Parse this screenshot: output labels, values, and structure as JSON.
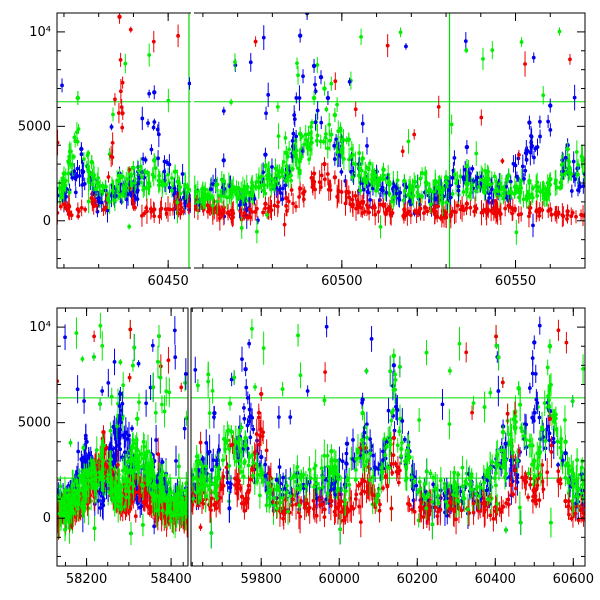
{
  "chart_data": [
    {
      "type": "scatter",
      "title": "",
      "xlabel": "",
      "ylabel": "",
      "xlim": [
        60418,
        60570
      ],
      "ylim": [
        -2500,
        11000
      ],
      "x_ticks": [
        60450,
        60500,
        60550
      ],
      "x_tick_labels": [
        "60450",
        "60500",
        "60550"
      ],
      "y_ticks": [
        0,
        5000,
        10000
      ],
      "y_tick_labels": [
        "0",
        "5000",
        "10⁴"
      ],
      "hlines": [
        {
          "y": 6300,
          "color": "#00dd00"
        }
      ],
      "vlines": [
        {
          "x": 60456,
          "color": "#00dd00"
        },
        {
          "x": 60531,
          "color": "#00dd00"
        }
      ],
      "panel_breaks": [
        60457
      ],
      "series_colors": [
        "#0000ee",
        "#00ee00",
        "#ee0000"
      ],
      "series": [
        {
          "color": "#0000ee",
          "sampling": "Baseline ~1200 with strong scatter to 8000+; clumps around 60485-60500 reaching 10000+.",
          "x": [
            60420,
            60425,
            60430,
            60436,
            60440,
            60446,
            60452,
            60460,
            60466,
            60472,
            60478,
            60484,
            60488,
            60490,
            60492,
            60494,
            60496,
            60500,
            60505,
            60510,
            60518,
            60524,
            60530,
            60536,
            60542,
            60548,
            60554,
            60560,
            60565,
            60568
          ],
          "y": [
            1400,
            3800,
            1200,
            2500,
            1800,
            6800,
            1500,
            1200,
            3200,
            900,
            3500,
            2200,
            9800,
            11000,
            8200,
            7600,
            6500,
            4200,
            3000,
            2600,
            1900,
            1500,
            2100,
            3900,
            1800,
            2400,
            5200,
            6100,
            4000,
            2800
          ]
        },
        {
          "color": "#00ee00",
          "sampling": "Mostly 1000-4000, peaking near 60495 at ~7000.",
          "x": [
            60420,
            60424,
            60428,
            60432,
            60436,
            60440,
            60446,
            60452,
            60460,
            60466,
            60472,
            60478,
            60484,
            60488,
            60492,
            60495,
            60498,
            60502,
            60506,
            60512,
            60518,
            60524,
            60530,
            60536,
            60542,
            60548,
            60554,
            60560,
            60565
          ],
          "y": [
            2500,
            6500,
            3100,
            1800,
            2400,
            2800,
            3200,
            2600,
            1700,
            2100,
            1800,
            2900,
            3600,
            4600,
            6500,
            7000,
            5600,
            4300,
            3300,
            2700,
            2100,
            2500,
            2300,
            2900,
            2600,
            2400,
            2100,
            2200,
            3800
          ]
        },
        {
          "color": "#ee0000",
          "sampling": "Baseline ~700; hump near 60495 to ~3000; sporadic outliers to 10000.",
          "x": [
            60420,
            60424,
            60428,
            60432,
            60436,
            60440,
            60446,
            60452,
            60460,
            60466,
            60472,
            60478,
            60484,
            60488,
            60492,
            60495,
            60498,
            60502,
            60506,
            60512,
            60518,
            60524,
            60530,
            60536,
            60542,
            60548,
            60554,
            60560,
            60565
          ],
          "y": [
            900,
            600,
            1200,
            700,
            10800,
            900,
            600,
            1000,
            800,
            700,
            400,
            900,
            1200,
            1700,
            2500,
            3000,
            2300,
            1500,
            1000,
            800,
            600,
            700,
            500,
            900,
            600,
            800,
            700,
            600,
            500
          ]
        }
      ]
    },
    {
      "type": "scatter",
      "title": "",
      "xlabel": "",
      "ylabel": "",
      "xlim": [
        58130,
        60630
      ],
      "ylim": [
        -2500,
        11000
      ],
      "x_ticks": [
        58200,
        58400,
        59800,
        60000,
        60200,
        60400,
        60600
      ],
      "x_tick_labels": [
        "58200",
        "58400",
        "59800",
        "60000",
        "60200",
        "60400",
        "60600"
      ],
      "y_ticks": [
        0,
        5000,
        10000
      ],
      "y_tick_labels": [
        "0",
        "5000",
        "10⁴"
      ],
      "hlines": [
        {
          "y": 6300,
          "color": "#00dd00"
        },
        {
          "y": 2100,
          "color": "#00dd00"
        }
      ],
      "axis_break": "between 58400 and 59800",
      "series_colors": [
        "#0000ee",
        "#00ee00",
        "#ee0000"
      ],
      "series": [
        {
          "color": "#0000ee",
          "sampling": "Dense clusters in each season, many outliers 5000-10000.",
          "x": [
            58160,
            58200,
            58240,
            58280,
            58320,
            58360,
            58400,
            59640,
            59680,
            59720,
            59760,
            59800,
            59840,
            59980,
            60020,
            60060,
            60100,
            60140,
            60180,
            60220,
            60380,
            60420,
            60460,
            60500,
            60540,
            60580,
            60600
          ],
          "y": [
            1200,
            4000,
            1800,
            6500,
            2200,
            3000,
            1000,
            2500,
            5500,
            1600,
            7800,
            3200,
            2000,
            1800,
            3900,
            6200,
            2600,
            8000,
            3500,
            1400,
            2000,
            4800,
            3000,
            9200,
            5600,
            3400,
            1800
          ]
        },
        {
          "color": "#00ee00",
          "sampling": "Highly variable 0-8000 within each season.",
          "x": [
            58160,
            58200,
            58240,
            58280,
            58320,
            58360,
            58400,
            59640,
            59680,
            59720,
            59760,
            59800,
            59840,
            59980,
            60020,
            60060,
            60100,
            60140,
            60180,
            60220,
            60380,
            60420,
            60460,
            60500,
            60540,
            60580,
            60600
          ],
          "y": [
            800,
            2500,
            3800,
            1500,
            5200,
            2200,
            1000,
            3000,
            1800,
            6000,
            4200,
            2500,
            1500,
            3500,
            2000,
            5500,
            1200,
            8500,
            3200,
            1800,
            2500,
            4500,
            6800,
            3000,
            9000,
            4000,
            2200
          ]
        },
        {
          "color": "#ee0000",
          "sampling": "Mostly 0-2500 with sparse excursions above 5000.",
          "x": [
            58160,
            58200,
            58240,
            58280,
            58320,
            58360,
            58400,
            59640,
            59680,
            59720,
            59760,
            59800,
            59840,
            59980,
            60020,
            60060,
            60100,
            60140,
            60180,
            60220,
            60380,
            60420,
            60460,
            60500,
            60540,
            60580,
            60600
          ],
          "y": [
            600,
            1200,
            4500,
            900,
            2200,
            800,
            400,
            1500,
            700,
            3800,
            1000,
            6500,
            800,
            900,
            500,
            2000,
            1200,
            4200,
            700,
            500,
            800,
            600,
            3500,
            1400,
            5200,
            900,
            600
          ]
        }
      ]
    }
  ]
}
